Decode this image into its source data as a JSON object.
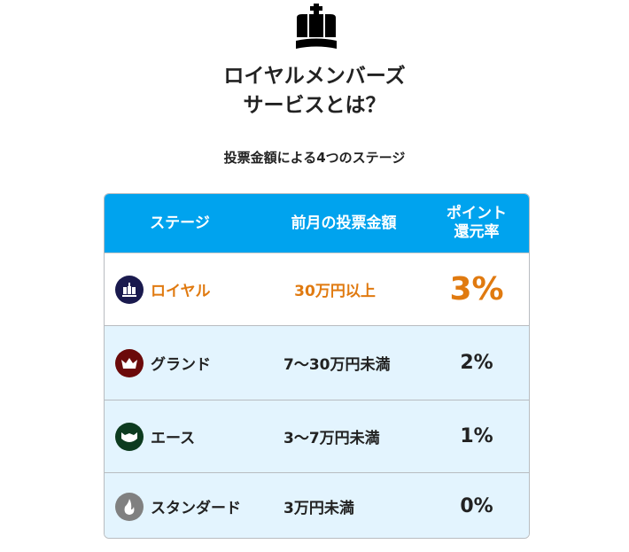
{
  "header": {
    "icon": "crown-icon",
    "title_line1": "ロイヤルメンバーズ",
    "title_line2": "サービスとは？",
    "subtitle": "投票金額による4つのステージ"
  },
  "table": {
    "columns": [
      "ステージ",
      "前月の投票金額",
      "ポイント",
      "還元率"
    ],
    "rows": [
      {
        "stage": "ロイヤル",
        "amount": "30万円以上",
        "rate": "3%",
        "icon": "royal-crown-icon",
        "icon_color": "#1a1a4e"
      },
      {
        "stage": "グランド",
        "amount": "7〜30万円未満",
        "rate": "2%",
        "icon": "grand-crown-icon",
        "icon_color": "#6b0a0a"
      },
      {
        "stage": "エース",
        "amount": "3〜7万円未満",
        "rate": "1%",
        "icon": "ace-icon",
        "icon_color": "#0d3b1f"
      },
      {
        "stage": "スタンダード",
        "amount": "3万円未満",
        "rate": "0%",
        "icon": "flame-icon",
        "icon_color": "#808080"
      }
    ]
  },
  "colors": {
    "header_bg": "#00a3ee",
    "highlight": "#e07a10",
    "row_bg": "#e3f4fe"
  }
}
